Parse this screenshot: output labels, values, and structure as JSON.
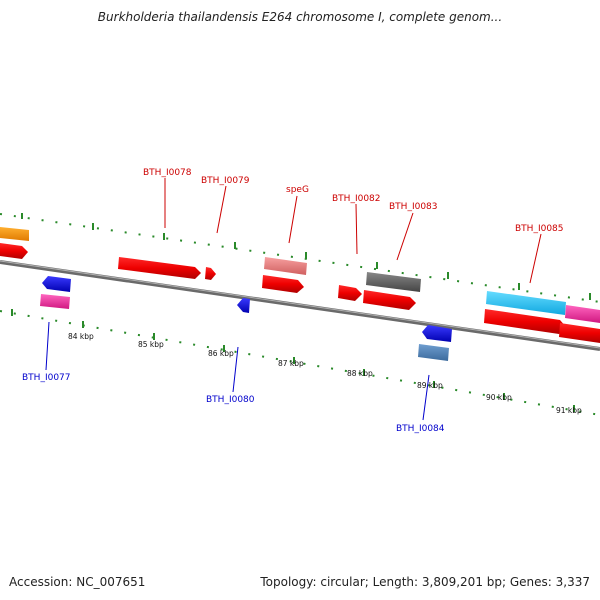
{
  "title": "Burkholderia thailandensis E264 chromosome I, complete genom...",
  "footer": {
    "accession": "Accession: NC_007651",
    "summary": "Topology: circular; Length: 3,809,201 bp; Genes: 3,337"
  },
  "scale": {
    "ticks": [
      "84 kbp",
      "85 kbp",
      "86 kbp",
      "87 kbp",
      "88 kbp",
      "89 kbp",
      "90 kbp",
      "91 kbp"
    ]
  },
  "genes": [
    {
      "id": "BTH_I0077",
      "strand": "minus",
      "color": "#0000ee"
    },
    {
      "id": "BTH_I0078",
      "strand": "plus",
      "color": "#cc0000"
    },
    {
      "id": "BTH_I0079",
      "strand": "plus",
      "color": "#cc0000"
    },
    {
      "id": "BTH_I0080",
      "strand": "minus",
      "color": "#0000ee"
    },
    {
      "id": "speG",
      "strand": "plus",
      "color": "#cc0000"
    },
    {
      "id": "BTH_I0082",
      "strand": "plus",
      "color": "#cc0000"
    },
    {
      "id": "BTH_I0083",
      "strand": "plus",
      "color": "#cc0000"
    },
    {
      "id": "BTH_I0084",
      "strand": "minus",
      "color": "#0000ee"
    },
    {
      "id": "BTH_I0085",
      "strand": "plus",
      "color": "#cc0000"
    }
  ]
}
